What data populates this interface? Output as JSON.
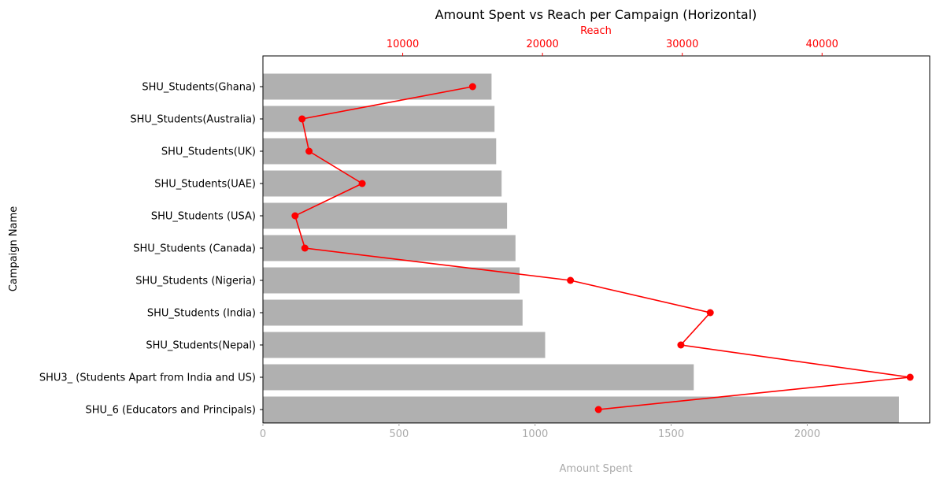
{
  "chart_data": {
    "type": "bar",
    "orientation": "horizontal",
    "title": "Amount Spent vs Reach per Campaign (Horizontal)",
    "ylabel": "Campaign Name",
    "xlabel": "Amount Spent",
    "x2label": "Reach",
    "categories": [
      "SHU_Students(Ghana)",
      "SHU_Students(Australia)",
      "SHU_Students(UK)",
      "SHU_Students(UAE)",
      "SHU_Students (USA)",
      "SHU_Students (Canada)",
      "SHU_Students (Nigeria)",
      "SHU_Students (India)",
      "SHU_Students(Nepal)",
      "SHU3_ (Students Apart from India and US)",
      "SHU_6 (Educators and Principals)"
    ],
    "series": [
      {
        "values": [
          840,
          851,
          857,
          877,
          897,
          928,
          943,
          954,
          1037,
          1583,
          2337
        ],
        "color": "#b0b0b0",
        "axis": "bottom"
      },
      {
        "values": [
          15000,
          2800,
          3300,
          7100,
          2300,
          3000,
          22000,
          32000,
          29900,
          46300,
          24000
        ],
        "color": "#ff0000",
        "axis": "top",
        "marker": "circle"
      }
    ],
    "xlim": [
      0,
      2450
    ],
    "x2lim": [
      0,
      47700
    ],
    "xticks": [
      0,
      500,
      1000,
      1500,
      2000
    ],
    "x2ticks": [
      10000,
      20000,
      30000,
      40000
    ],
    "xtick_color": "#aaaaaa",
    "x2tick_color": "#ff0000",
    "grid": false
  }
}
